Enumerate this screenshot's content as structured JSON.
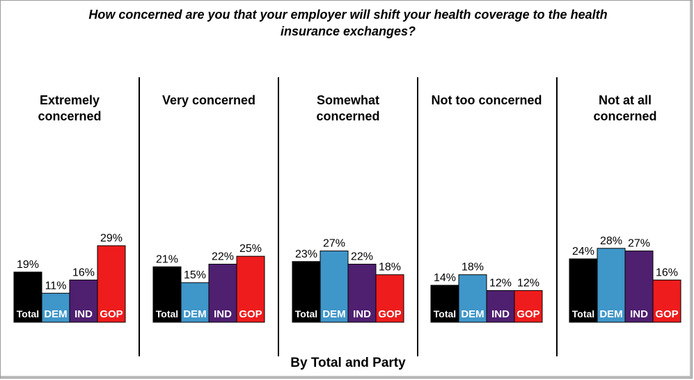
{
  "title": "How concerned are you that your employer will shift your health coverage to the health insurance exchanges?",
  "footer": "By Total and Party",
  "colors": {
    "Total": "#000000",
    "DEM": "#3f96c9",
    "IND": "#4f1f70",
    "GOP": "#ee1c1c"
  },
  "chart_data": {
    "type": "bar",
    "title": "How concerned are you that your employer will shift your health coverage to the health insurance exchanges?",
    "groups": [
      {
        "label": [
          "Extremely",
          "concerned"
        ],
        "values": [
          19,
          11,
          16,
          29
        ]
      },
      {
        "label": [
          "Very concerned"
        ],
        "values": [
          21,
          15,
          22,
          25
        ]
      },
      {
        "label": [
          "Somewhat",
          "concerned"
        ],
        "values": [
          23,
          27,
          22,
          18
        ]
      },
      {
        "label": [
          "Not too concerned"
        ],
        "values": [
          14,
          18,
          12,
          12
        ]
      },
      {
        "label": [
          "Not at all",
          "concerned"
        ],
        "values": [
          24,
          28,
          27,
          16
        ]
      }
    ],
    "series": [
      "Total",
      "DEM",
      "IND",
      "GOP"
    ],
    "value_suffix": "%",
    "ylim": [
      0,
      30
    ]
  }
}
